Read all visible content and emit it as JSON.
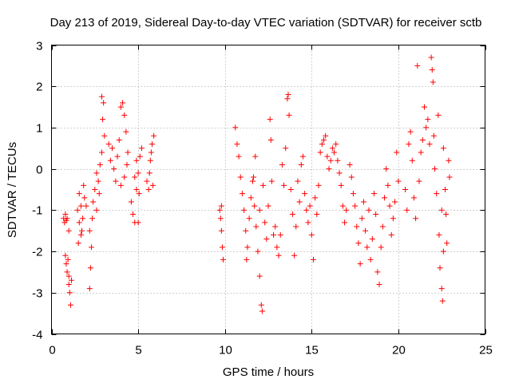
{
  "chart_data": {
    "type": "scatter",
    "title": "Day 213 of 2019, Sidereal Day-to-day VTEC variation (SDTVAR) for receiver sctb",
    "xlabel": "GPS time / hours",
    "ylabel": "SDTVAR / TECUs",
    "xlim": [
      0,
      25
    ],
    "ylim": [
      -4,
      3
    ],
    "xticks": [
      "0",
      "5",
      "10",
      "15",
      "20",
      "25"
    ],
    "yticks": [
      "-4",
      "-3",
      "-2",
      "-1",
      "0",
      "1",
      "2",
      "3"
    ],
    "grid": true,
    "marker": "plus",
    "color": "#ff0000",
    "series": [
      {
        "name": "SDTVAR",
        "points": [
          [
            0.7,
            -1.2
          ],
          [
            0.75,
            -1.3
          ],
          [
            0.8,
            -1.1
          ],
          [
            0.85,
            -1.25
          ],
          [
            0.8,
            -2.1
          ],
          [
            0.85,
            -2.3
          ],
          [
            0.9,
            -2.5
          ],
          [
            0.95,
            -2.2
          ],
          [
            1.0,
            -2.8
          ],
          [
            1.05,
            -3.0
          ],
          [
            1.1,
            -3.3
          ],
          [
            1.0,
            -2.6
          ],
          [
            1.15,
            -2.7
          ],
          [
            0.9,
            -1.2
          ],
          [
            1.0,
            -1.5
          ],
          [
            1.5,
            -1.0
          ],
          [
            1.6,
            -1.3
          ],
          [
            1.7,
            -1.6
          ],
          [
            1.8,
            -1.2
          ],
          [
            1.6,
            -0.6
          ],
          [
            1.7,
            -0.9
          ],
          [
            1.9,
            -0.7
          ],
          [
            1.55,
            -1.8
          ],
          [
            1.75,
            -1.5
          ],
          [
            1.85,
            -0.4
          ],
          [
            2.0,
            -0.9
          ],
          [
            2.2,
            -1.5
          ],
          [
            2.3,
            -1.9
          ],
          [
            2.25,
            -2.4
          ],
          [
            2.2,
            -2.9
          ],
          [
            2.35,
            -1.2
          ],
          [
            2.4,
            -0.8
          ],
          [
            2.5,
            -0.5
          ],
          [
            2.6,
            -1.0
          ],
          [
            2.7,
            -0.3
          ],
          [
            2.8,
            0.1
          ],
          [
            2.9,
            0.4
          ],
          [
            2.95,
            1.2
          ],
          [
            3.0,
            1.6
          ],
          [
            2.9,
            1.75
          ],
          [
            3.05,
            0.8
          ],
          [
            2.75,
            -0.6
          ],
          [
            2.6,
            -0.1
          ],
          [
            3.3,
            0.6
          ],
          [
            3.4,
            0.2
          ],
          [
            3.5,
            0.5
          ],
          [
            3.6,
            0.0
          ],
          [
            3.7,
            -0.3
          ],
          [
            3.8,
            0.3
          ],
          [
            3.9,
            0.7
          ],
          [
            4.0,
            1.5
          ],
          [
            4.1,
            1.6
          ],
          [
            4.2,
            1.3
          ],
          [
            4.3,
            0.9
          ],
          [
            4.4,
            0.4
          ],
          [
            4.0,
            -0.4
          ],
          [
            4.2,
            -0.2
          ],
          [
            4.35,
            0.1
          ],
          [
            4.6,
            -0.8
          ],
          [
            4.7,
            -1.1
          ],
          [
            4.8,
            -1.3
          ],
          [
            4.9,
            -0.5
          ],
          [
            5.0,
            -0.1
          ],
          [
            5.05,
            -0.6
          ],
          [
            5.1,
            0.3
          ],
          [
            5.2,
            0.5
          ],
          [
            5.0,
            -1.3
          ],
          [
            4.8,
            -0.2
          ],
          [
            4.9,
            0.2
          ],
          [
            5.5,
            -0.3
          ],
          [
            5.6,
            -0.5
          ],
          [
            5.7,
            0.2
          ],
          [
            5.8,
            0.6
          ],
          [
            5.9,
            0.8
          ],
          [
            5.65,
            -0.1
          ],
          [
            5.85,
            -0.4
          ],
          [
            5.75,
            0.4
          ],
          [
            9.7,
            -1.0
          ],
          [
            9.75,
            -1.2
          ],
          [
            9.8,
            -1.5
          ],
          [
            9.85,
            -1.9
          ],
          [
            9.9,
            -2.2
          ],
          [
            9.8,
            -0.9
          ],
          [
            10.6,
            1.0
          ],
          [
            10.7,
            0.6
          ],
          [
            10.8,
            0.3
          ],
          [
            10.9,
            -0.2
          ],
          [
            11.0,
            -0.6
          ],
          [
            11.1,
            -1.0
          ],
          [
            11.2,
            -1.5
          ],
          [
            11.3,
            -1.9
          ],
          [
            11.4,
            -1.2
          ],
          [
            11.5,
            -0.7
          ],
          [
            11.6,
            -0.3
          ],
          [
            11.7,
            -0.9
          ],
          [
            11.8,
            -1.4
          ],
          [
            11.9,
            -2.0
          ],
          [
            12.0,
            -1.0
          ],
          [
            11.65,
            -0.2
          ],
          [
            11.75,
            0.3
          ],
          [
            11.25,
            -2.2
          ],
          [
            12.0,
            -2.6
          ],
          [
            12.1,
            -3.3
          ],
          [
            12.15,
            -3.45
          ],
          [
            12.2,
            -0.4
          ],
          [
            12.3,
            -1.3
          ],
          [
            12.4,
            -1.7
          ],
          [
            12.5,
            -0.9
          ],
          [
            12.6,
            1.2
          ],
          [
            12.65,
            0.7
          ],
          [
            12.7,
            -0.3
          ],
          [
            12.8,
            -1.6
          ],
          [
            12.9,
            -1.4
          ],
          [
            13.0,
            -1.9
          ],
          [
            13.1,
            -2.1
          ],
          [
            13.2,
            -1.6
          ],
          [
            13.3,
            0.1
          ],
          [
            13.4,
            -0.4
          ],
          [
            13.5,
            0.5
          ],
          [
            13.6,
            1.7
          ],
          [
            13.65,
            1.8
          ],
          [
            13.7,
            1.3
          ],
          [
            13.8,
            -0.5
          ],
          [
            13.9,
            -1.1
          ],
          [
            14.0,
            -2.1
          ],
          [
            14.1,
            -1.4
          ],
          [
            14.2,
            -0.3
          ],
          [
            14.3,
            -0.8
          ],
          [
            14.4,
            0.1
          ],
          [
            14.5,
            0.3
          ],
          [
            14.6,
            -0.6
          ],
          [
            14.7,
            -1.0
          ],
          [
            14.8,
            -1.3
          ],
          [
            14.9,
            -0.9
          ],
          [
            15.0,
            -1.6
          ],
          [
            15.1,
            -2.2
          ],
          [
            15.2,
            -0.7
          ],
          [
            15.3,
            -1.1
          ],
          [
            15.4,
            -0.4
          ],
          [
            15.5,
            0.4
          ],
          [
            15.6,
            0.6
          ],
          [
            15.7,
            0.7
          ],
          [
            15.8,
            0.8
          ],
          [
            15.9,
            0.3
          ],
          [
            16.0,
            0.0
          ],
          [
            16.1,
            0.2
          ],
          [
            16.2,
            0.5
          ],
          [
            16.3,
            0.4
          ],
          [
            16.4,
            0.6
          ],
          [
            16.5,
            0.2
          ],
          [
            16.6,
            -0.1
          ],
          [
            16.7,
            -0.4
          ],
          [
            16.8,
            -0.9
          ],
          [
            16.9,
            -1.3
          ],
          [
            17.0,
            -1.0
          ],
          [
            17.2,
            0.1
          ],
          [
            17.3,
            -0.2
          ],
          [
            17.4,
            -0.6
          ],
          [
            17.5,
            -0.9
          ],
          [
            17.6,
            -1.4
          ],
          [
            17.7,
            -1.8
          ],
          [
            17.8,
            -2.3
          ],
          [
            17.9,
            -1.2
          ],
          [
            18.0,
            -0.8
          ],
          [
            18.1,
            -1.5
          ],
          [
            18.2,
            -1.9
          ],
          [
            18.3,
            -1.0
          ],
          [
            18.4,
            -2.2
          ],
          [
            18.5,
            -1.7
          ],
          [
            18.6,
            -0.6
          ],
          [
            18.7,
            -1.1
          ],
          [
            18.8,
            -2.5
          ],
          [
            18.9,
            -2.8
          ],
          [
            19.0,
            -1.9
          ],
          [
            19.1,
            -1.4
          ],
          [
            19.2,
            -0.7
          ],
          [
            19.3,
            0.0
          ],
          [
            19.4,
            -0.4
          ],
          [
            19.5,
            -0.9
          ],
          [
            19.6,
            -1.6
          ],
          [
            19.7,
            -1.2
          ],
          [
            19.8,
            -0.8
          ],
          [
            19.9,
            0.4
          ],
          [
            20.0,
            -0.3
          ],
          [
            20.4,
            -0.5
          ],
          [
            20.5,
            -1.0
          ],
          [
            20.6,
            0.6
          ],
          [
            20.7,
            0.9
          ],
          [
            20.8,
            0.2
          ],
          [
            20.9,
            -0.7
          ],
          [
            21.0,
            -1.2
          ],
          [
            21.1,
            2.5
          ],
          [
            21.2,
            -0.3
          ],
          [
            21.3,
            0.4
          ],
          [
            21.4,
            0.7
          ],
          [
            21.5,
            1.5
          ],
          [
            21.6,
            1.0
          ],
          [
            21.7,
            1.2
          ],
          [
            21.8,
            0.6
          ],
          [
            21.9,
            2.7
          ],
          [
            21.95,
            2.4
          ],
          [
            22.0,
            2.1
          ],
          [
            22.05,
            0.8
          ],
          [
            22.1,
            0.0
          ],
          [
            22.2,
            -0.6
          ],
          [
            22.3,
            1.3
          ],
          [
            22.35,
            -1.6
          ],
          [
            22.4,
            -2.4
          ],
          [
            22.5,
            -2.9
          ],
          [
            22.55,
            -3.2
          ],
          [
            22.6,
            0.5
          ],
          [
            22.7,
            -0.5
          ],
          [
            22.75,
            -1.1
          ],
          [
            22.8,
            -1.8
          ],
          [
            22.9,
            0.2
          ],
          [
            22.95,
            -0.2
          ],
          [
            22.5,
            -1.0
          ],
          [
            22.6,
            -2.0
          ]
        ]
      }
    ]
  }
}
